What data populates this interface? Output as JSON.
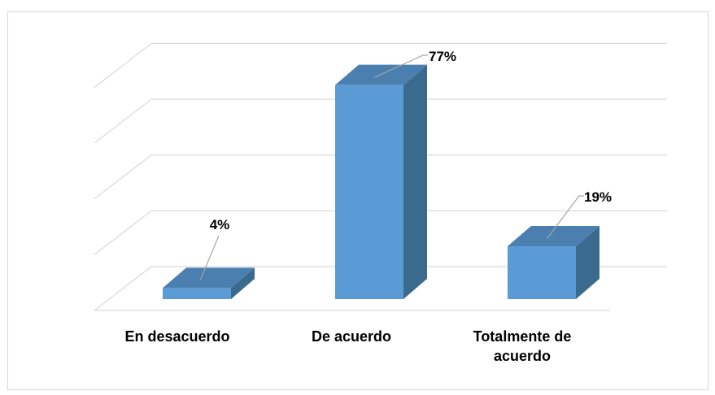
{
  "chart_data": {
    "type": "bar",
    "categories": [
      "En desacuerdo",
      "De acuerdo",
      "Totalmente de acuerdo"
    ],
    "values": [
      4,
      77,
      19
    ],
    "data_labels": [
      "4%",
      "77%",
      "19%"
    ],
    "ylim": [
      0,
      100
    ],
    "grid": true,
    "title": "",
    "xlabel": "",
    "ylabel": "",
    "colors": {
      "bar_front": "#5b9bd5",
      "bar_side": "#3b6a8f",
      "bar_top": "#4a7fb0",
      "gridline": "#d9d9d9",
      "leader": "#a6a6a6"
    }
  }
}
